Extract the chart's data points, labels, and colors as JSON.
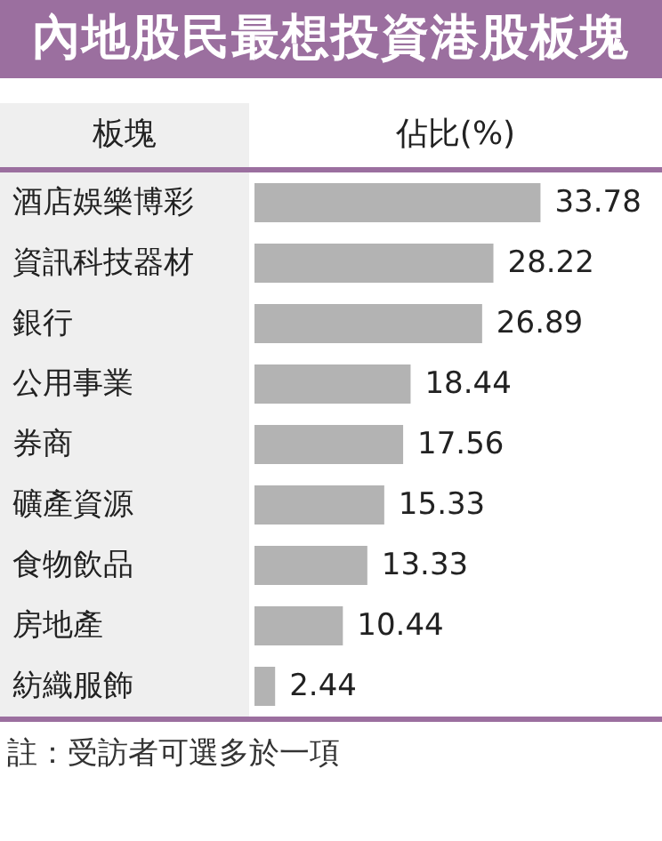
{
  "chart_data": {
    "type": "bar",
    "orientation": "horizontal",
    "title": "內地股民最想投資港股板塊",
    "ylabel": "板塊",
    "xlabel": "佔比(%)",
    "categories": [
      "酒店娛樂博彩",
      "資訊科技器材",
      "銀行",
      "公用事業",
      "券商",
      "礦產資源",
      "食物飲品",
      "房地產",
      "紡織服飾"
    ],
    "values": [
      33.78,
      28.22,
      26.89,
      18.44,
      17.56,
      15.33,
      13.33,
      10.44,
      2.44
    ],
    "color": "#b3b3b3",
    "data_labels": true,
    "annotations": [
      "註：受訪者可選多於一項"
    ]
  }
}
